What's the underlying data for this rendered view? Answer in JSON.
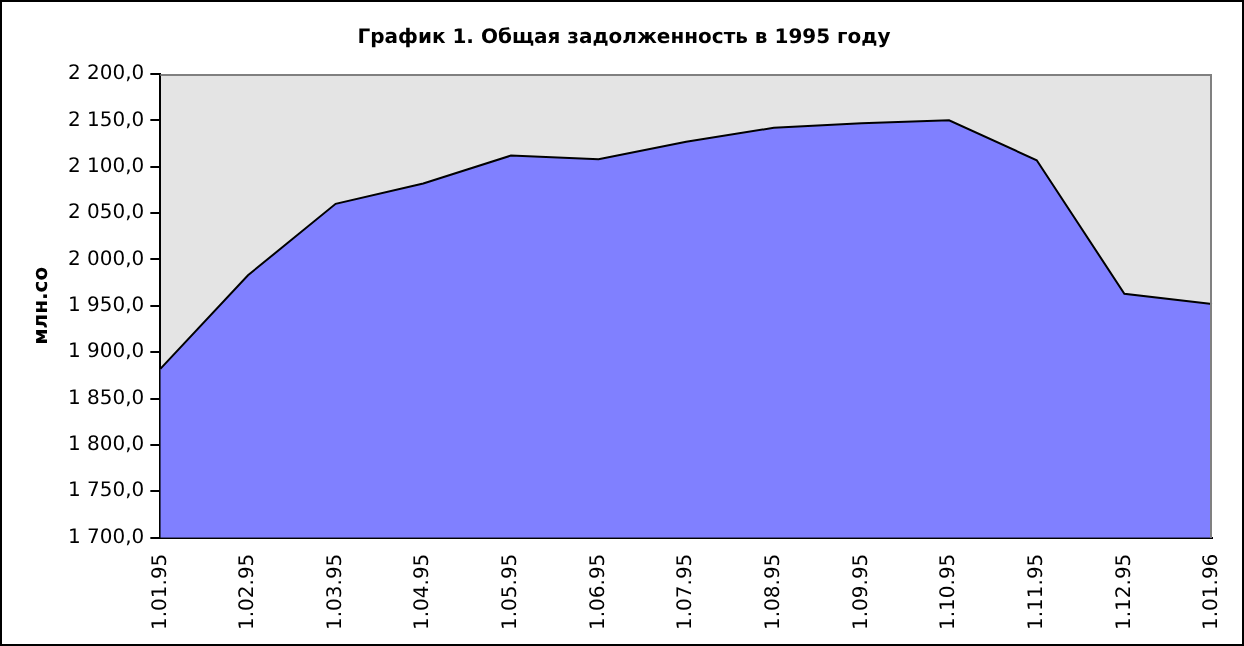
{
  "chart_data": {
    "type": "area",
    "title": "График 1. Общая задолженность в 1995 году",
    "ylabel": "млн.со",
    "categories": [
      "1.01.95",
      "1.02.95",
      "1.03.95",
      "1.04.95",
      "1.05.95",
      "1.06.95",
      "1.07.95",
      "1.08.95",
      "1.09.95",
      "1.10.95",
      "1.11.95",
      "1.12.95",
      "1.01.96"
    ],
    "series": [
      {
        "color": "#8080ff",
        "values": [
          1882,
          1983,
          2060,
          2082,
          2112,
          2108,
          2127,
          2142,
          2147,
          2150,
          2107,
          1963,
          1952
        ]
      }
    ],
    "ylim": [
      1700,
      2200
    ],
    "yticks": [
      {
        "value": 1700,
        "label": "1 700,0"
      },
      {
        "value": 1750,
        "label": "1 750,0"
      },
      {
        "value": 1800,
        "label": "1 800,0"
      },
      {
        "value": 1850,
        "label": "1 850,0"
      },
      {
        "value": 1900,
        "label": "1 900,0"
      },
      {
        "value": 1950,
        "label": "1 950,0"
      },
      {
        "value": 2000,
        "label": "2 000,0"
      },
      {
        "value": 2050,
        "label": "2 050,0"
      },
      {
        "value": 2100,
        "label": "2 100,0"
      },
      {
        "value": 2150,
        "label": "2 150,0"
      },
      {
        "value": 2200,
        "label": "2 200,0"
      }
    ],
    "grid": false,
    "legend": false
  }
}
